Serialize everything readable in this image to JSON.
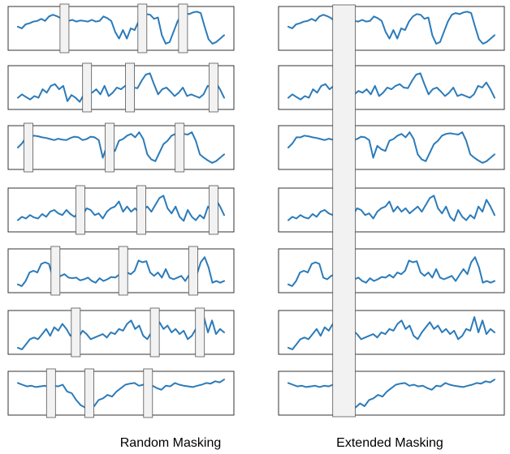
{
  "figure": {
    "panels": [
      {
        "caption": "Random Masking",
        "masking": "random",
        "series": [
          {
            "values": [
              0.55,
              0.5,
              0.62,
              0.65,
              0.7,
              0.72,
              0.78,
              0.72,
              0.85,
              0.9,
              0.86,
              0.8,
              0.7,
              0.72,
              0.75,
              0.7,
              0.73,
              0.72,
              0.7,
              0.75,
              0.7,
              0.72,
              0.85,
              0.8,
              0.72,
              0.4,
              0.2,
              0.45,
              0.2,
              0.5,
              0.45,
              0.7,
              0.85,
              0.92,
              0.9,
              0.78,
              0.82,
              0.3,
              0.05,
              0.1,
              0.4,
              0.7,
              0.9,
              0.95,
              0.92,
              0.97,
              0.99,
              0.95,
              0.55,
              0.18,
              0.05,
              0.1,
              0.2,
              0.3
            ],
            "masks": [
              0.23,
              0.575,
              0.755
            ]
          },
          {
            "values": [
              0.2,
              0.3,
              0.22,
              0.15,
              0.25,
              0.2,
              0.45,
              0.35,
              0.55,
              0.6,
              0.45,
              0.55,
              0.1,
              0.28,
              0.2,
              0.08,
              0.3,
              0.4,
              0.35,
              0.45,
              0.3,
              0.55,
              0.25,
              0.35,
              0.5,
              0.45,
              0.55,
              0.6,
              0.5,
              0.48,
              0.7,
              0.88,
              0.92,
              0.6,
              0.3,
              0.45,
              0.5,
              0.38,
              0.25,
              0.35,
              0.5,
              0.25,
              0.3,
              0.25,
              0.2,
              0.3,
              0.55,
              0.5,
              0.65,
              0.45,
              0.2
            ],
            "masks": [
              0.33,
              0.52,
              0.89
            ]
          },
          {
            "values": [
              0.5,
              0.62,
              0.8,
              0.8,
              0.85,
              0.83,
              0.8,
              0.78,
              0.75,
              0.72,
              0.76,
              0.73,
              0.72,
              0.78,
              0.82,
              0.8,
              0.72,
              0.75,
              0.82,
              0.8,
              0.72,
              0.2,
              0.55,
              0.45,
              0.4,
              0.7,
              0.75,
              0.85,
              0.9,
              0.8,
              0.95,
              0.75,
              0.3,
              0.15,
              0.1,
              0.35,
              0.6,
              0.7,
              0.85,
              0.9,
              0.92,
              0.9,
              0.88,
              0.95,
              0.7,
              0.3,
              0.2,
              0.12,
              0.05,
              0.1,
              0.2,
              0.3
            ],
            "masks": [
              0.07,
              0.43,
              0.74
            ]
          },
          {
            "values": [
              0.2,
              0.3,
              0.25,
              0.35,
              0.28,
              0.25,
              0.38,
              0.3,
              0.45,
              0.5,
              0.4,
              0.35,
              0.5,
              0.38,
              0.3,
              0.45,
              0.35,
              0.55,
              0.5,
              0.35,
              0.4,
              0.25,
              0.45,
              0.55,
              0.6,
              0.75,
              0.45,
              0.6,
              0.45,
              0.55,
              0.4,
              0.5,
              0.6,
              0.45,
              0.65,
              0.85,
              0.92,
              0.55,
              0.4,
              0.6,
              0.3,
              0.18,
              0.5,
              0.3,
              0.2,
              0.35,
              0.25,
              0.6,
              0.45,
              0.8,
              0.6,
              0.35
            ],
            "masks": [
              0.3,
              0.57,
              0.89
            ]
          },
          {
            "values": [
              0.1,
              0.05,
              0.2,
              0.45,
              0.5,
              0.45,
              0.7,
              0.75,
              0.7,
              0.3,
              0.25,
              0.35,
              0.4,
              0.3,
              0.28,
              0.3,
              0.22,
              0.25,
              0.3,
              0.2,
              0.15,
              0.28,
              0.2,
              0.25,
              0.32,
              0.3,
              0.38,
              0.3,
              0.45,
              0.4,
              0.5,
              0.8,
              0.75,
              0.78,
              0.45,
              0.35,
              0.45,
              0.3,
              0.55,
              0.3,
              0.25,
              0.3,
              0.35,
              0.2,
              0.38,
              0.55,
              0.4,
              0.75,
              0.9,
              0.6,
              0.15,
              0.2,
              0.15,
              0.2
            ],
            "masks": [
              0.19,
              0.49,
              0.8
            ]
          },
          {
            "values": [
              0.05,
              0.0,
              0.15,
              0.3,
              0.35,
              0.3,
              0.45,
              0.6,
              0.4,
              0.65,
              0.55,
              0.75,
              0.6,
              0.4,
              0.5,
              0.35,
              0.55,
              0.45,
              0.3,
              0.35,
              0.4,
              0.45,
              0.35,
              0.5,
              0.45,
              0.6,
              0.55,
              0.75,
              0.85,
              0.6,
              0.7,
              0.4,
              0.3,
              0.5,
              0.65,
              0.8,
              0.6,
              0.7,
              0.5,
              0.6,
              0.45,
              0.55,
              0.3,
              0.4,
              0.6,
              0.55,
              0.95,
              0.5,
              0.85,
              0.45,
              0.6,
              0.5
            ],
            "masks": [
              0.28,
              0.63,
              0.83
            ]
          },
          {
            "values": [
              0.8,
              0.75,
              0.7,
              0.72,
              0.68,
              0.7,
              0.72,
              0.68,
              0.72,
              0.7,
              0.75,
              0.55,
              0.5,
              0.3,
              0.15,
              0.08,
              0.2,
              0.12,
              0.3,
              0.35,
              0.45,
              0.4,
              0.55,
              0.65,
              0.75,
              0.78,
              0.8,
              0.72,
              0.75,
              0.7,
              0.72,
              0.65,
              0.6,
              0.72,
              0.7,
              0.8,
              0.75,
              0.72,
              0.7,
              0.68,
              0.72,
              0.75,
              0.8,
              0.78,
              0.85,
              0.82,
              0.9
            ],
            "masks": [
              0.17,
              0.34,
              0.6
            ]
          }
        ]
      },
      {
        "caption": "Extended Masking",
        "masking": "extended",
        "series": [
          {
            "values": [
              0.55,
              0.5,
              0.62,
              0.65,
              0.7,
              0.72,
              0.78,
              0.72,
              0.85,
              0.9,
              0.86,
              0.8,
              0.7,
              0.72,
              0.75,
              0.7,
              0.73,
              0.72,
              0.7,
              0.75,
              0.7,
              0.72,
              0.85,
              0.8,
              0.72,
              0.4,
              0.2,
              0.45,
              0.2,
              0.5,
              0.45,
              0.7,
              0.85,
              0.92,
              0.9,
              0.78,
              0.82,
              0.3,
              0.05,
              0.1,
              0.4,
              0.7,
              0.9,
              0.95,
              0.92,
              0.97,
              0.99,
              0.95,
              0.55,
              0.18,
              0.05,
              0.1,
              0.2,
              0.3
            ],
            "masks": []
          },
          {
            "values": [
              0.2,
              0.3,
              0.22,
              0.15,
              0.25,
              0.2,
              0.45,
              0.35,
              0.55,
              0.6,
              0.45,
              0.55,
              0.1,
              0.28,
              0.2,
              0.08,
              0.3,
              0.4,
              0.35,
              0.45,
              0.3,
              0.55,
              0.25,
              0.35,
              0.5,
              0.45,
              0.55,
              0.6,
              0.5,
              0.48,
              0.7,
              0.88,
              0.92,
              0.6,
              0.3,
              0.45,
              0.5,
              0.38,
              0.25,
              0.35,
              0.5,
              0.25,
              0.3,
              0.25,
              0.2,
              0.3,
              0.55,
              0.5,
              0.65,
              0.45,
              0.2
            ],
            "masks": []
          },
          {
            "values": [
              0.5,
              0.62,
              0.8,
              0.8,
              0.85,
              0.83,
              0.8,
              0.78,
              0.75,
              0.72,
              0.76,
              0.73,
              0.72,
              0.78,
              0.82,
              0.8,
              0.72,
              0.75,
              0.82,
              0.8,
              0.72,
              0.2,
              0.55,
              0.45,
              0.4,
              0.7,
              0.75,
              0.85,
              0.9,
              0.8,
              0.95,
              0.75,
              0.3,
              0.15,
              0.1,
              0.35,
              0.6,
              0.7,
              0.85,
              0.9,
              0.92,
              0.9,
              0.88,
              0.95,
              0.7,
              0.3,
              0.2,
              0.12,
              0.05,
              0.1,
              0.2,
              0.3
            ],
            "masks": []
          },
          {
            "values": [
              0.2,
              0.3,
              0.25,
              0.35,
              0.28,
              0.25,
              0.38,
              0.3,
              0.45,
              0.5,
              0.4,
              0.35,
              0.5,
              0.38,
              0.3,
              0.45,
              0.35,
              0.55,
              0.5,
              0.35,
              0.4,
              0.25,
              0.45,
              0.55,
              0.6,
              0.75,
              0.45,
              0.6,
              0.45,
              0.55,
              0.4,
              0.5,
              0.6,
              0.45,
              0.65,
              0.85,
              0.92,
              0.55,
              0.4,
              0.6,
              0.3,
              0.18,
              0.5,
              0.3,
              0.2,
              0.35,
              0.25,
              0.6,
              0.45,
              0.8,
              0.6,
              0.35
            ],
            "masks": []
          },
          {
            "values": [
              0.1,
              0.05,
              0.2,
              0.45,
              0.5,
              0.45,
              0.7,
              0.75,
              0.7,
              0.3,
              0.25,
              0.35,
              0.4,
              0.3,
              0.28,
              0.3,
              0.22,
              0.25,
              0.3,
              0.2,
              0.15,
              0.28,
              0.2,
              0.25,
              0.32,
              0.3,
              0.38,
              0.3,
              0.45,
              0.4,
              0.5,
              0.8,
              0.75,
              0.78,
              0.45,
              0.35,
              0.45,
              0.3,
              0.55,
              0.3,
              0.25,
              0.3,
              0.35,
              0.2,
              0.38,
              0.55,
              0.4,
              0.75,
              0.9,
              0.6,
              0.15,
              0.2,
              0.15,
              0.2
            ],
            "masks": []
          },
          {
            "values": [
              0.05,
              0.0,
              0.15,
              0.3,
              0.35,
              0.3,
              0.45,
              0.6,
              0.4,
              0.65,
              0.55,
              0.75,
              0.6,
              0.4,
              0.5,
              0.35,
              0.55,
              0.45,
              0.3,
              0.35,
              0.4,
              0.45,
              0.35,
              0.5,
              0.45,
              0.6,
              0.55,
              0.75,
              0.85,
              0.6,
              0.7,
              0.4,
              0.3,
              0.5,
              0.65,
              0.8,
              0.6,
              0.7,
              0.5,
              0.6,
              0.45,
              0.55,
              0.3,
              0.4,
              0.6,
              0.55,
              0.95,
              0.5,
              0.85,
              0.45,
              0.6,
              0.5
            ],
            "masks": []
          },
          {
            "values": [
              0.8,
              0.75,
              0.7,
              0.72,
              0.68,
              0.7,
              0.72,
              0.68,
              0.72,
              0.7,
              0.75,
              0.55,
              0.5,
              0.3,
              0.15,
              0.08,
              0.2,
              0.12,
              0.3,
              0.35,
              0.45,
              0.4,
              0.55,
              0.65,
              0.75,
              0.78,
              0.8,
              0.72,
              0.75,
              0.7,
              0.72,
              0.65,
              0.6,
              0.72,
              0.7,
              0.8,
              0.75,
              0.72,
              0.7,
              0.68,
              0.72,
              0.75,
              0.8,
              0.78,
              0.85,
              0.82,
              0.9
            ],
            "masks": []
          }
        ],
        "extended_mask": {
          "start": 0.24,
          "end": 0.34
        }
      }
    ],
    "colors": {
      "line": "#2b7bba",
      "mask_fill": "#f2f2f2",
      "mask_stroke": "#555555",
      "frame": "#333333"
    }
  }
}
